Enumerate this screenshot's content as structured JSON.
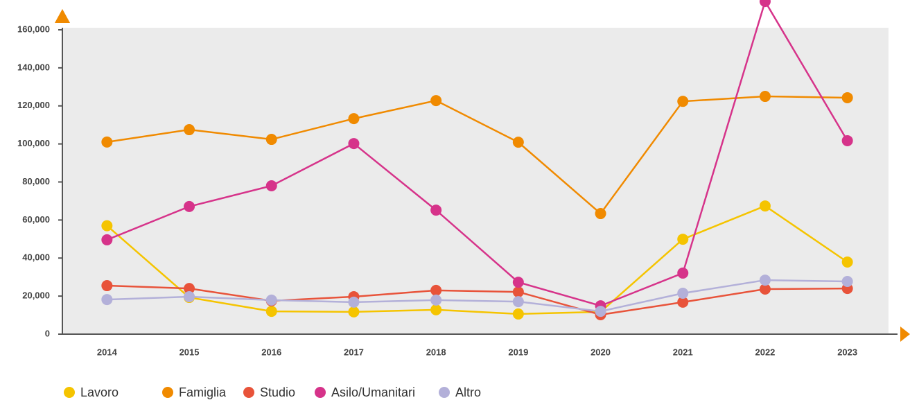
{
  "chart_data": {
    "type": "line",
    "categories": [
      "2014",
      "2015",
      "2016",
      "2017",
      "2018",
      "2019",
      "2020",
      "2021",
      "2022",
      "2023"
    ],
    "series": [
      {
        "name": "Lavoro",
        "color": "#f5c400",
        "values": [
          57000,
          19300,
          12000,
          11700,
          12800,
          10600,
          11700,
          49900,
          67400,
          37900
        ]
      },
      {
        "name": "Famiglia",
        "color": "#f08a00",
        "values": [
          101000,
          107500,
          102400,
          113300,
          122800,
          100900,
          63400,
          122400,
          125000,
          124300
        ]
      },
      {
        "name": "Studio",
        "color": "#e8533a",
        "values": [
          25500,
          24000,
          17500,
          19700,
          23000,
          22200,
          10200,
          16800,
          23700,
          24000
        ]
      },
      {
        "name": "Asilo/Umanitari",
        "color": "#d6338a",
        "values": [
          49600,
          67100,
          78000,
          100200,
          65200,
          27300,
          14900,
          32100,
          174900,
          101700
        ]
      },
      {
        "name": "Altro",
        "color": "#b3b0d9",
        "values": [
          18200,
          19700,
          17900,
          16800,
          17900,
          17100,
          12000,
          21500,
          28400,
          27700
        ]
      }
    ],
    "ylim": [
      0,
      160000
    ],
    "yticks": [
      0,
      {
        "value": 20000,
        "label": "20,000"
      },
      {
        "value": 40000,
        "label": "40,000"
      },
      {
        "value": 60000,
        "label": "60,000"
      },
      {
        "value": 80000,
        "label": "80,000"
      },
      {
        "value": 100000,
        "label": "100,000"
      },
      {
        "value": 120000,
        "label": "120,000"
      },
      {
        "value": 140000,
        "label": "140,000"
      },
      {
        "value": 160000,
        "label": "160,000"
      }
    ],
    "grid": false,
    "legend": "bottom-left"
  }
}
